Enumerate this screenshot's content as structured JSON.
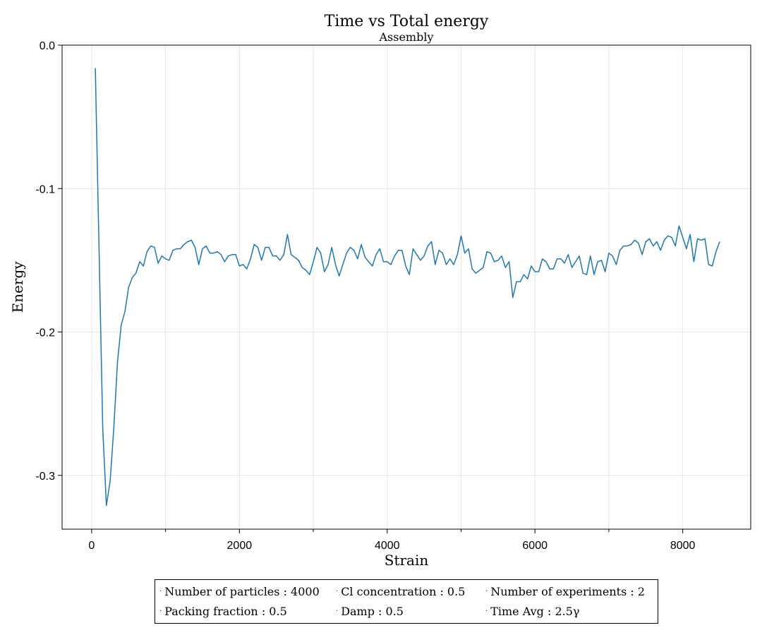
{
  "chart_data": {
    "type": "line",
    "title": "Time vs Total energy",
    "subtitle": "Assembly",
    "xlabel": "Strain",
    "ylabel": "Energy",
    "xlim": [
      -400,
      8920
    ],
    "ylim": [
      -0.3375,
      0.0
    ],
    "x_ticks": [
      0,
      2000,
      4000,
      6000,
      8000
    ],
    "x_tick_labels": [
      "0",
      "2000",
      "4000",
      "6000",
      "8000"
    ],
    "x_minor_ticks": [
      1000,
      3000,
      5000,
      7000
    ],
    "y_ticks": [
      0.0,
      -0.1,
      -0.2,
      -0.3
    ],
    "y_tick_labels": [
      "0.0",
      "-0.1",
      "-0.2",
      "-0.3"
    ],
    "grid": true,
    "color": "#1f77b4",
    "series": [
      {
        "x": [
          50,
          150,
          200,
          250,
          300,
          350,
          400,
          450,
          500,
          550,
          600,
          650,
          700,
          750,
          800,
          850,
          900,
          950,
          1000,
          1050,
          1100,
          1150,
          1200,
          1250,
          1300,
          1350,
          1400,
          1450,
          1500,
          1550,
          1600,
          1650,
          1700,
          1750,
          1800,
          1850,
          1900,
          1950,
          2000,
          2050,
          2100,
          2150,
          2200,
          2250,
          2300,
          2350,
          2400,
          2450,
          2500,
          2550,
          2600,
          2650,
          2700,
          2750,
          2800,
          2850,
          2900,
          2950,
          3000,
          3050,
          3100,
          3150,
          3200,
          3250,
          3300,
          3350,
          3400,
          3450,
          3500,
          3550,
          3600,
          3650,
          3700,
          3750,
          3800,
          3850,
          3900,
          3950,
          4000,
          4050,
          4100,
          4150,
          4200,
          4250,
          4300,
          4350,
          4400,
          4450,
          4500,
          4550,
          4600,
          4650,
          4700,
          4750,
          4800,
          4850,
          4900,
          4950,
          5000,
          5050,
          5100,
          5150,
          5200,
          5250,
          5300,
          5350,
          5400,
          5450,
          5500,
          5550,
          5600,
          5650,
          5700,
          5750,
          5800,
          5850,
          5900,
          5950,
          6000,
          6050,
          6100,
          6150,
          6200,
          6250,
          6300,
          6350,
          6400,
          6450,
          6500,
          6550,
          6600,
          6650,
          6700,
          6750,
          6800,
          6850,
          6900,
          6950,
          7000,
          7050,
          7100,
          7150,
          7200,
          7250,
          7300,
          7350,
          7400,
          7450,
          7500,
          7550,
          7600,
          7650,
          7700,
          7750,
          7800,
          7850,
          7900,
          7950,
          8000,
          8050,
          8100,
          8150,
          8200,
          8250,
          8300,
          8350,
          8400,
          8450,
          8500
        ],
        "y": [
          -0.016,
          -0.267,
          -0.321,
          -0.304,
          -0.267,
          -0.221,
          -0.195,
          -0.186,
          -0.169,
          -0.162,
          -0.159,
          -0.151,
          -0.154,
          -0.144,
          -0.14,
          -0.141,
          -0.152,
          -0.147,
          -0.149,
          -0.15,
          -0.143,
          -0.142,
          -0.142,
          -0.139,
          -0.137,
          -0.136,
          -0.141,
          -0.153,
          -0.142,
          -0.14,
          -0.145,
          -0.145,
          -0.144,
          -0.146,
          -0.151,
          -0.147,
          -0.146,
          -0.146,
          -0.154,
          -0.153,
          -0.156,
          -0.149,
          -0.139,
          -0.141,
          -0.15,
          -0.141,
          -0.141,
          -0.147,
          -0.147,
          -0.15,
          -0.146,
          -0.132,
          -0.146,
          -0.148,
          -0.15,
          -0.155,
          -0.157,
          -0.16,
          -0.151,
          -0.141,
          -0.145,
          -0.158,
          -0.153,
          -0.141,
          -0.153,
          -0.161,
          -0.153,
          -0.145,
          -0.141,
          -0.143,
          -0.149,
          -0.139,
          -0.148,
          -0.151,
          -0.154,
          -0.146,
          -0.142,
          -0.151,
          -0.151,
          -0.153,
          -0.147,
          -0.143,
          -0.143,
          -0.154,
          -0.16,
          -0.142,
          -0.146,
          -0.15,
          -0.147,
          -0.14,
          -0.137,
          -0.153,
          -0.143,
          -0.145,
          -0.153,
          -0.149,
          -0.153,
          -0.146,
          -0.133,
          -0.145,
          -0.142,
          -0.156,
          -0.159,
          -0.157,
          -0.155,
          -0.144,
          -0.145,
          -0.151,
          -0.15,
          -0.147,
          -0.155,
          -0.151,
          -0.176,
          -0.165,
          -0.165,
          -0.16,
          -0.163,
          -0.154,
          -0.158,
          -0.158,
          -0.149,
          -0.151,
          -0.156,
          -0.156,
          -0.149,
          -0.149,
          -0.152,
          -0.146,
          -0.155,
          -0.151,
          -0.147,
          -0.159,
          -0.16,
          -0.147,
          -0.16,
          -0.151,
          -0.15,
          -0.158,
          -0.145,
          -0.147,
          -0.153,
          -0.143,
          -0.14,
          -0.14,
          -0.139,
          -0.136,
          -0.138,
          -0.146,
          -0.137,
          -0.135,
          -0.14,
          -0.137,
          -0.143,
          -0.136,
          -0.133,
          -0.134,
          -0.14,
          -0.126,
          -0.134,
          -0.142,
          -0.132,
          -0.151,
          -0.135,
          -0.136,
          -0.135,
          -0.153,
          -0.154,
          -0.144,
          -0.137
        ]
      }
    ]
  },
  "info": {
    "particles": "Number of particles : 4000",
    "cl": "Cl concentration : 0.5",
    "experiments": "Number of experiments : 2",
    "packing": "Packing fraction : 0.5",
    "damp": "Damp : 0.5",
    "time_avg": "Time Avg : 2.5γ"
  }
}
